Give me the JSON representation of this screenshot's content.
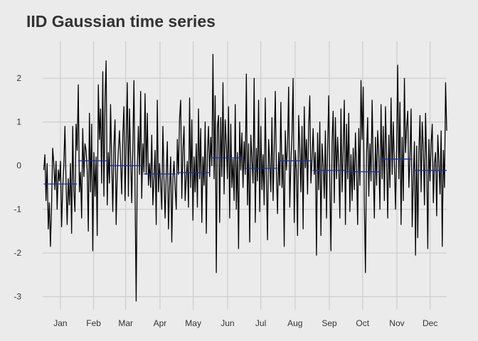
{
  "chart_data": {
    "type": "line",
    "title": "IID Gaussian time series",
    "xlabel": "",
    "ylabel": "",
    "grid": true,
    "legend": "none",
    "colors": {
      "series": "#000000",
      "monthly_mean": "#1a2ea8",
      "background": "#ebebeb",
      "grid": "#cfcfcf",
      "text": "#333333"
    },
    "x_domain": [
      "2021-12-31",
      "2022-12-31"
    ],
    "ylim": [
      -3.3,
      2.85
    ],
    "y_ticks": [
      -3,
      -2,
      -1,
      0,
      1,
      2
    ],
    "y_tick_labels": [
      "-3",
      "-2",
      "-1",
      "0",
      "1",
      "2"
    ],
    "x_ticks": [
      {
        "date": "2022-01-16",
        "label": "Jan"
      },
      {
        "date": "2022-02-15",
        "label": "Feb"
      },
      {
        "date": "2022-03-16",
        "label": "Mar"
      },
      {
        "date": "2022-04-16",
        "label": "Apr"
      },
      {
        "date": "2022-05-16",
        "label": "May"
      },
      {
        "date": "2022-06-16",
        "label": "Jun"
      },
      {
        "date": "2022-07-16",
        "label": "Jul"
      },
      {
        "date": "2022-08-16",
        "label": "Aug"
      },
      {
        "date": "2022-09-16",
        "label": "Sep"
      },
      {
        "date": "2022-10-16",
        "label": "Oct"
      },
      {
        "date": "2022-11-16",
        "label": "Nov"
      },
      {
        "date": "2022-12-16",
        "label": "Dec"
      }
    ],
    "series": [
      {
        "values": [
          -0.1,
          0.25,
          -0.8,
          0.05,
          -1.45,
          -0.85,
          -1.85,
          -0.9,
          0.4,
          0.05,
          -0.55,
          0.1,
          -1.0,
          -0.1,
          -0.35,
          0.1,
          -1.4,
          -0.5,
          0.0,
          0.9,
          -0.4,
          -1.35,
          -0.3,
          -0.9,
          0.05,
          -1.55,
          0.9,
          -0.6,
          -1.05,
          0.95,
          0.35,
          1.85,
          -0.6,
          -0.15,
          -1.2,
          0.85,
          -0.25,
          0.5,
          0.35,
          -0.1,
          -1.5,
          1.2,
          -0.6,
          0.95,
          -1.95,
          0.3,
          -0.7,
          0.2,
          -1.6,
          1.85,
          0.6,
          1.3,
          -0.4,
          2.15,
          -0.7,
          1.5,
          2.4,
          -0.9,
          0.3,
          -0.4,
          1.4,
          0.1,
          -1.05,
          0.45,
          1.05,
          -1.35,
          -0.2,
          0.35,
          0.8,
          0.1,
          -0.65,
          0.7,
          1.35,
          -0.8,
          0.5,
          1.9,
          -0.7,
          1.3,
          0.2,
          -0.85,
          0.4,
          1.95,
          -0.6,
          -3.1,
          -0.1,
          0.9,
          -0.2,
          1.7,
          -0.75,
          0.5,
          -0.15,
          1.65,
          -0.2,
          1.2,
          -0.45,
          0.05,
          -0.5,
          0.7,
          -0.9,
          -0.3,
          0.35,
          -1.35,
          1.5,
          -0.6,
          0.05,
          -0.4,
          -1.0,
          0.9,
          -0.3,
          -1.2,
          -0.2,
          0.55,
          -1.45,
          -0.5,
          0.2,
          -1.75,
          -0.3,
          0.1,
          -0.5,
          -1.0,
          0.6,
          -0.2,
          1.1,
          1.5,
          -0.75,
          0.35,
          0.9,
          -0.8,
          -0.25,
          0.1,
          -0.95,
          1.55,
          -0.5,
          1.05,
          -1.25,
          0.2,
          -0.6,
          0.5,
          -0.95,
          1.3,
          -0.3,
          0.85,
          -1.3,
          0.2,
          -0.45,
          1.0,
          -1.55,
          0.3,
          0.9,
          -0.25,
          0.65,
          0.0,
          2.55,
          -0.3,
          1.6,
          -2.45,
          0.9,
          1.15,
          -1.3,
          1.1,
          -0.25,
          1.9,
          -0.65,
          1.05,
          0.5,
          -0.3,
          1.35,
          -1.2,
          0.95,
          -0.5,
          0.15,
          -0.8,
          1.4,
          -1.0,
          0.3,
          -1.9,
          1.0,
          -0.1,
          0.75,
          -0.5,
          0.55,
          -0.2,
          2.1,
          -0.9,
          0.5,
          -1.75,
          0.7,
          0.15,
          -0.4,
          2.0,
          -1.3,
          0.4,
          -0.35,
          1.5,
          -1.05,
          0.9,
          -0.55,
          0.25,
          -0.9,
          1.55,
          -0.3,
          -1.7,
          0.6,
          0.05,
          -0.6,
          1.1,
          -0.8,
          0.35,
          1.7,
          -0.15,
          -1.1,
          0.3,
          -0.45,
          1.45,
          -0.5,
          0.25,
          -1.85,
          0.8,
          -0.1,
          0.45,
          1.8,
          -0.95,
          0.1,
          0.7,
          2.0,
          -1.3,
          0.35,
          -0.15,
          -1.6,
          1.15,
          0.4,
          -0.6,
          0.9,
          -1.45,
          1.35,
          -0.05,
          0.6,
          -0.65,
          0.9,
          1.6,
          -0.4,
          0.15,
          0.85,
          -0.2,
          0.3,
          -2.05,
          0.75,
          -0.55,
          1.0,
          -1.6,
          0.5,
          0.05,
          -0.75,
          0.8,
          -1.2,
          0.4,
          1.6,
          -0.4,
          -1.95,
          0.55,
          1.25,
          -0.85,
          1.1,
          -0.3,
          0.65,
          0.0,
          -1.2,
          1.3,
          -0.6,
          0.35,
          1.5,
          -1.35,
          0.95,
          -0.3,
          1.2,
          -1.05,
          0.25,
          -0.8,
          0.4,
          -0.55,
          0.75,
          -0.1,
          -1.35,
          0.85,
          -0.45,
          1.95,
          0.6,
          1.8,
          -0.9,
          -2.45,
          0.3,
          1.1,
          -0.7,
          0.5,
          -0.35,
          1.5,
          -0.05,
          -1.2,
          0.65,
          -0.45,
          0.8,
          0.2,
          -1.0,
          1.4,
          -0.3,
          0.9,
          -0.8,
          1.35,
          0.2,
          -1.2,
          0.7,
          -0.5,
          1.55,
          -0.2,
          1.0,
          0.05,
          -1.0,
          0.4,
          2.3,
          -0.3,
          1.45,
          -1.35,
          0.65,
          -0.8,
          2.0,
          0.3,
          0.9,
          1.25,
          -0.5,
          0.2,
          1.3,
          -1.4,
          -0.3,
          0.55,
          -2.05,
          0.45,
          -1.65,
          0.3,
          1.15,
          -0.6,
          1.0,
          0.4,
          -0.9,
          1.2,
          0.1,
          -1.9,
          0.6,
          -0.35,
          0.5,
          0.95,
          -0.85,
          0.05,
          0.3,
          -1.15,
          0.7,
          0.1,
          -0.65,
          0.8,
          -1.85,
          0.35,
          -0.5,
          1.9,
          0.8
        ]
      }
    ],
    "monthly_means": [
      {
        "start": "2022-01-01",
        "end": "2022-01-31",
        "value": -0.42
      },
      {
        "start": "2022-02-01",
        "end": "2022-02-28",
        "value": 0.11
      },
      {
        "start": "2022-03-01",
        "end": "2022-03-31",
        "value": 0.0
      },
      {
        "start": "2022-04-01",
        "end": "2022-04-30",
        "value": -0.19
      },
      {
        "start": "2022-05-01",
        "end": "2022-05-31",
        "value": -0.16
      },
      {
        "start": "2022-06-01",
        "end": "2022-06-30",
        "value": 0.18
      },
      {
        "start": "2022-07-01",
        "end": "2022-07-31",
        "value": -0.06
      },
      {
        "start": "2022-08-01",
        "end": "2022-08-31",
        "value": 0.11
      },
      {
        "start": "2022-09-01",
        "end": "2022-09-30",
        "value": -0.11
      },
      {
        "start": "2022-10-01",
        "end": "2022-10-31",
        "value": -0.14
      },
      {
        "start": "2022-11-01",
        "end": "2022-11-30",
        "value": 0.15
      },
      {
        "start": "2022-12-01",
        "end": "2022-12-31",
        "value": -0.11
      }
    ]
  }
}
